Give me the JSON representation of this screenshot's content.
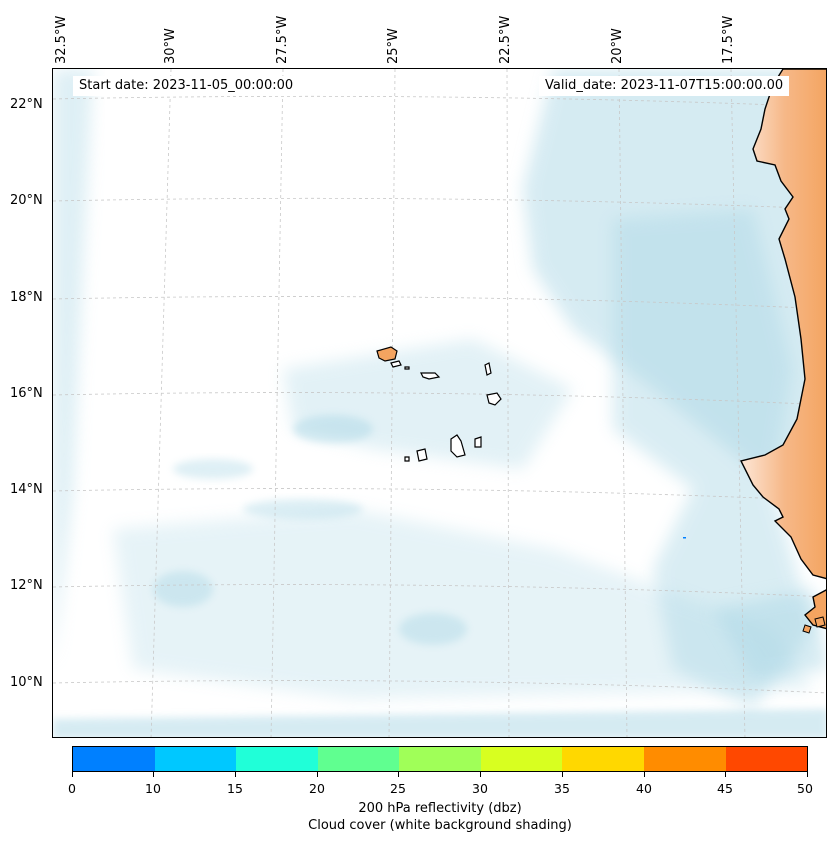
{
  "map": {
    "start_date": "Start date: 2023-11-05_00:00:00",
    "valid_date": "Valid_date: 2023-11-07T15:00:00.00",
    "lon_labels": [
      "32.5°W",
      "30°W",
      "27.5°W",
      "25°W",
      "22.5°W",
      "20°W",
      "17.5°W"
    ],
    "lat_labels": [
      "22°N",
      "20°N",
      "18°N",
      "16°N",
      "14°N",
      "12°N",
      "10°N"
    ],
    "colors": {
      "cloud_cover": "#add8e6",
      "land_fill": "#f4a460",
      "coastline": "#000000",
      "gridline": "#c8c8c8"
    }
  },
  "colorbar": {
    "ticks": [
      "0",
      "10",
      "15",
      "20",
      "25",
      "30",
      "35",
      "40",
      "45",
      "50"
    ],
    "colors": [
      "#0080ff",
      "#00c8ff",
      "#20ffd8",
      "#60ff90",
      "#a0ff58",
      "#d8ff20",
      "#ffd800",
      "#ff8c00",
      "#ff4800"
    ],
    "title_line1": "200 hPa reflectivity (dbz)",
    "title_line2": "Cloud cover (white background shading)"
  }
}
